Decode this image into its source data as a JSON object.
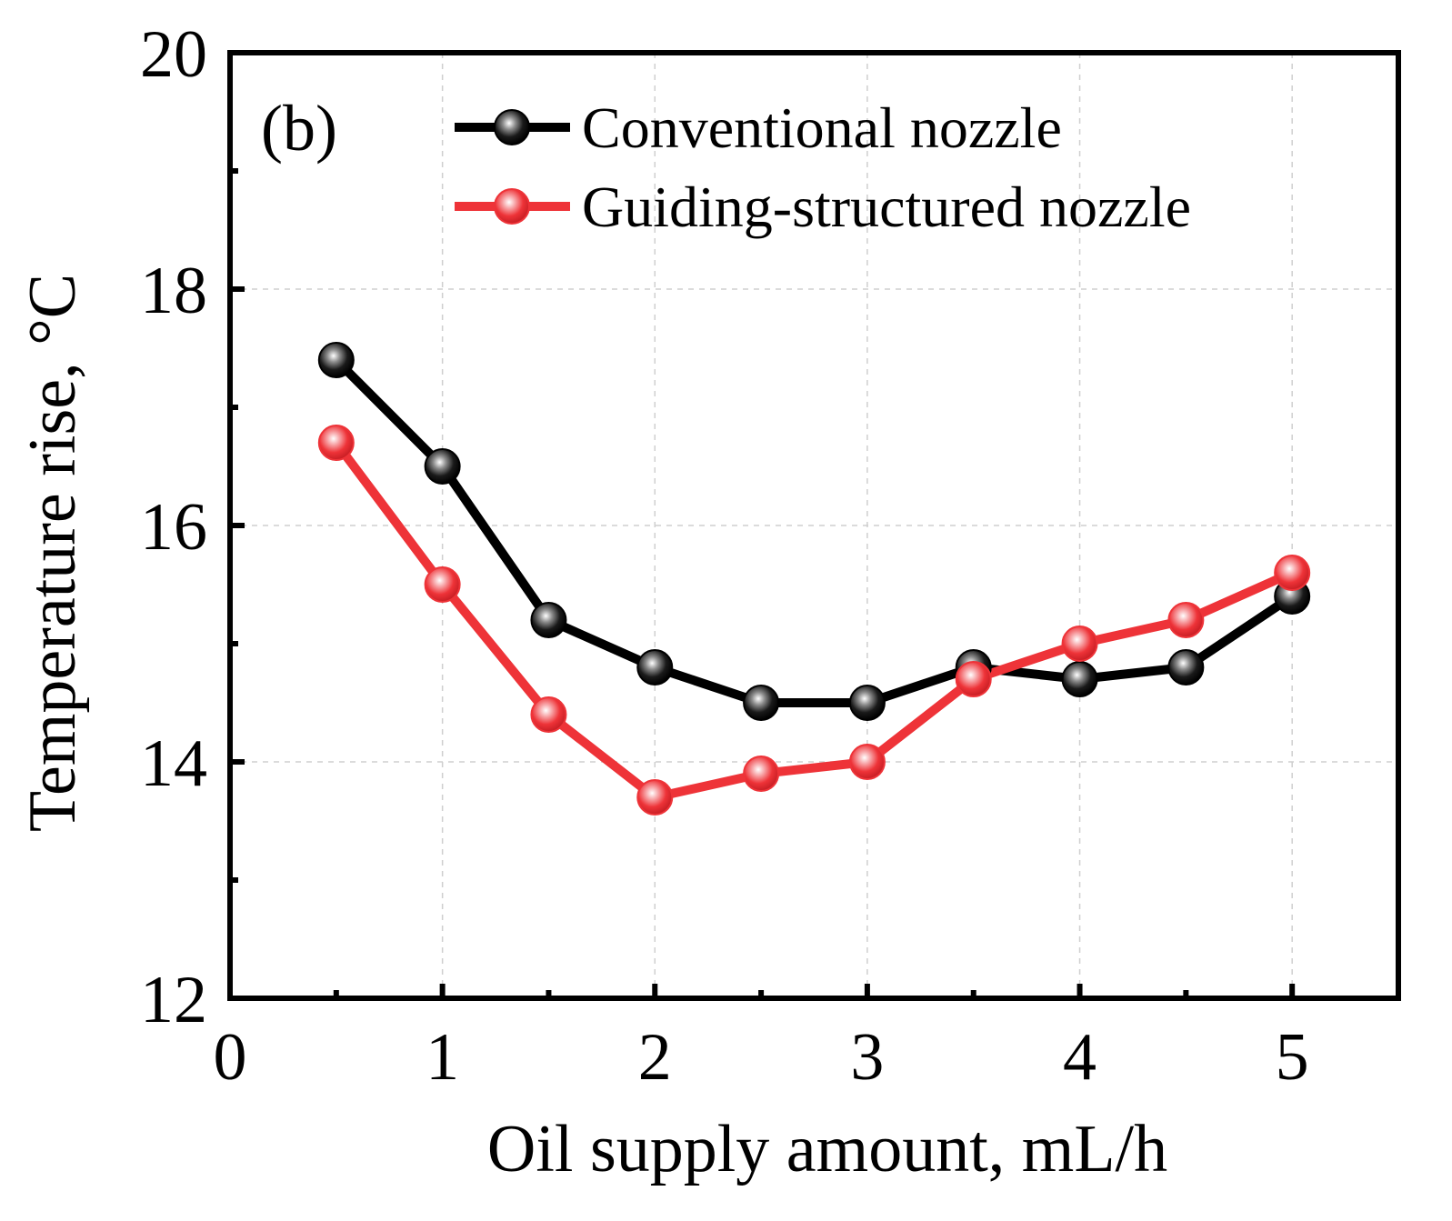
{
  "chart_data": {
    "type": "line",
    "panel_label": "(b)",
    "xlabel": "Oil supply amount, mL/h",
    "ylabel": "Temperature rise,  °C",
    "xlim": [
      0,
      5.5
    ],
    "ylim": [
      12,
      20
    ],
    "xticks": [
      0,
      1,
      2,
      3,
      4,
      5
    ],
    "yticks": [
      12,
      14,
      16,
      18,
      20
    ],
    "xtick_labels": [
      "0",
      "1",
      "2",
      "3",
      "4",
      "5"
    ],
    "ytick_labels": [
      "12",
      "14",
      "16",
      "18",
      "20"
    ],
    "x_minor_ticks": [
      0.5,
      1.5,
      2.5,
      3.5,
      4.5
    ],
    "y_minor_ticks": [
      13,
      15,
      17,
      19
    ],
    "grid": true,
    "legend_position": "top-right",
    "x": [
      0.5,
      1.0,
      1.5,
      2.0,
      2.5,
      3.0,
      3.5,
      4.0,
      4.5,
      5.0
    ],
    "series": [
      {
        "name": "Conventional nozzle",
        "color": "#000000",
        "values": [
          17.4,
          16.5,
          15.2,
          14.8,
          14.5,
          14.5,
          14.8,
          14.7,
          14.8,
          15.4
        ]
      },
      {
        "name": "Guiding-structured nozzle",
        "color": "#ee3338",
        "values": [
          16.7,
          15.5,
          14.4,
          13.7,
          13.9,
          14.0,
          14.7,
          15.0,
          15.2,
          15.6
        ]
      }
    ]
  }
}
